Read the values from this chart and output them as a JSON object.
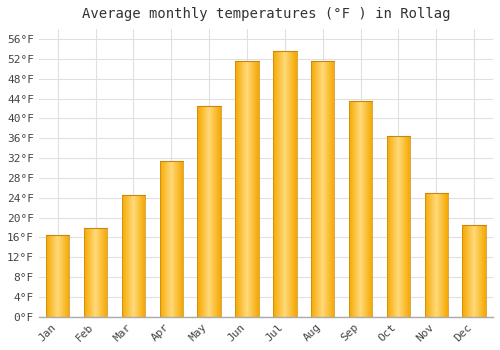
{
  "title": "Average monthly temperatures (°F ) in Rollag",
  "months": [
    "Jan",
    "Feb",
    "Mar",
    "Apr",
    "May",
    "Jun",
    "Jul",
    "Aug",
    "Sep",
    "Oct",
    "Nov",
    "Dec"
  ],
  "values": [
    16.5,
    18.0,
    24.5,
    31.5,
    42.5,
    51.5,
    53.5,
    51.5,
    43.5,
    36.5,
    25.0,
    18.5
  ],
  "bar_color_center": "#FFD97A",
  "bar_color_edge": "#F5A800",
  "background_color": "#ffffff",
  "grid_color": "#e0e0e0",
  "yticks": [
    0,
    4,
    8,
    12,
    16,
    20,
    24,
    28,
    32,
    36,
    40,
    44,
    48,
    52,
    56
  ],
  "ylim": [
    0,
    58
  ],
  "title_fontsize": 10,
  "tick_fontsize": 8,
  "font_family": "monospace"
}
